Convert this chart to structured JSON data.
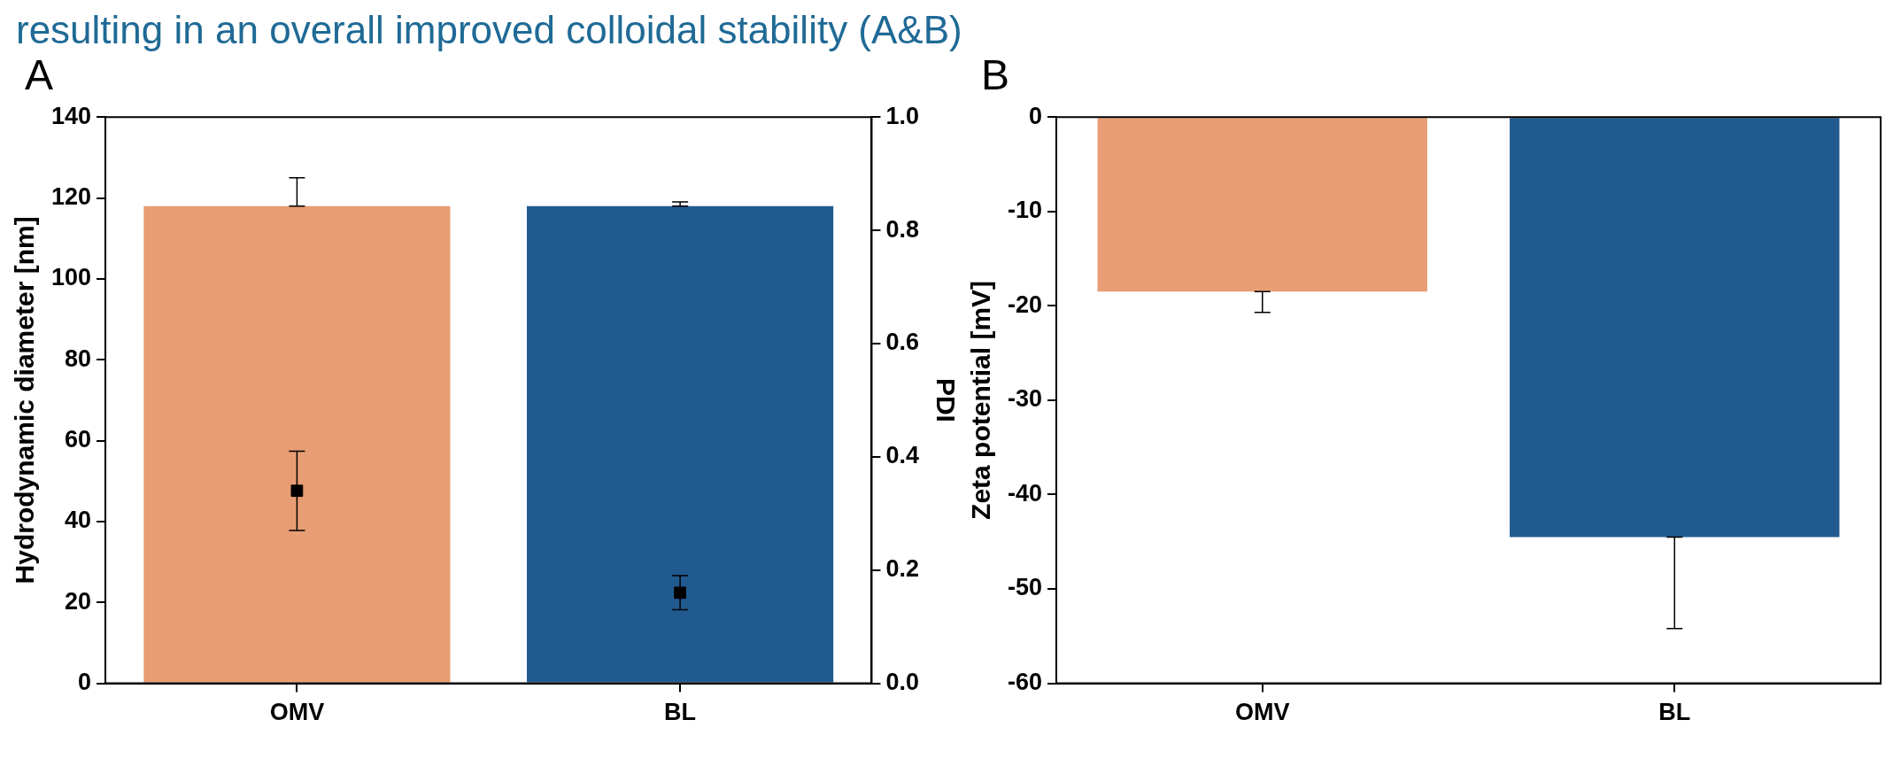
{
  "chart_data": [
    {
      "type": "bar",
      "title": "A",
      "annotations": [
        "resulting in an overall improved colloidal stability (A&B)"
      ],
      "categories": [
        "OMV",
        "BL"
      ],
      "ylabel": "Hydrodynamic diameter [nm]",
      "y2label": "PDI",
      "ylim": [
        0,
        140
      ],
      "yticks": [
        0,
        20,
        40,
        60,
        80,
        100,
        120,
        140
      ],
      "y2lim": [
        0,
        1
      ],
      "y2ticks": [
        {
          "value": 0,
          "label": "0.0"
        },
        {
          "value": 0.2,
          "label": "0.2"
        },
        {
          "value": 0.4,
          "label": "0.4"
        },
        {
          "value": 0.6,
          "label": "0.6"
        },
        {
          "value": 0.8,
          "label": "0.8"
        },
        {
          "value": 1,
          "label": "1.0"
        }
      ],
      "grid": false,
      "legend": false,
      "series": [
        {
          "type": "bar",
          "colors": [
            "#e89d74",
            "#215a8f"
          ],
          "values": [
            118,
            118
          ],
          "errors": [
            [
              118,
              125
            ],
            [
              118,
              119
            ]
          ]
        },
        {
          "type": "scatter",
          "axis": "y2",
          "x": [
            "OMV",
            "BL"
          ],
          "values": [
            0.34,
            0.16
          ],
          "errors": [
            0.07,
            0.03
          ],
          "color": "#000000",
          "marker": "square"
        }
      ]
    },
    {
      "type": "bar",
      "title": "B",
      "categories": [
        "OMV",
        "BL"
      ],
      "ylabel": "Zeta potential [mV]",
      "ylim": [
        -60,
        0
      ],
      "yticks": [
        -60,
        -50,
        -40,
        -30,
        -20,
        -10,
        0
      ],
      "grid": false,
      "legend": false,
      "values": [
        -18.5,
        -44.5
      ],
      "colors": [
        "#e89d74",
        "#215a8f"
      ],
      "errors": [
        [
          -20.7,
          -18.5
        ],
        [
          -54.2,
          -44.5
        ]
      ]
    }
  ]
}
